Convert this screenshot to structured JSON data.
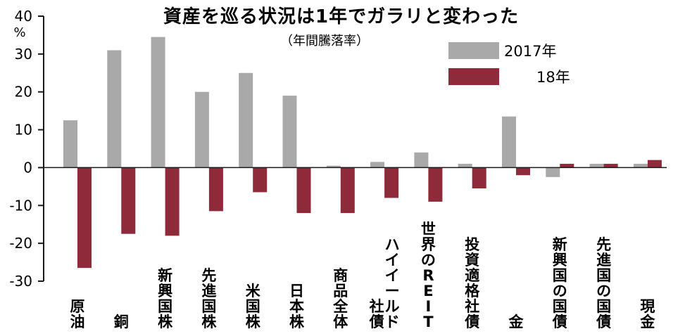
{
  "chart_data": {
    "type": "bar",
    "title": "資産を巡る状況は1年でガラリと変わった",
    "subtitle": "（年間騰落率）",
    "y_unit": "%",
    "ylim": [
      -30,
      40
    ],
    "yticks": [
      40,
      30,
      20,
      10,
      0,
      -10,
      -20,
      -30
    ],
    "categories": [
      "原油",
      "銅",
      "新興国株",
      "先進国株",
      "米国株",
      "日本株",
      "商品全体",
      "ハイイールド社債",
      "世界のREIT",
      "投資適格社債",
      "金",
      "新興国の国債",
      "先進国の国債",
      "現金"
    ],
    "category_lines": [
      [
        "原油"
      ],
      [
        "銅"
      ],
      [
        "新興国株"
      ],
      [
        "先進国株"
      ],
      [
        "米国株"
      ],
      [
        "日本株"
      ],
      [
        "商品全体"
      ],
      [
        "ハイイールド",
        "社債"
      ],
      [
        "世界のREIT"
      ],
      [
        "投資適格社債"
      ],
      [
        "金"
      ],
      [
        "新興国の国債"
      ],
      [
        "先進国の国債"
      ],
      [
        "現金"
      ]
    ],
    "series": [
      {
        "name": "2017年",
        "color": "#a9a9a9",
        "values": [
          12.5,
          31,
          34.5,
          20,
          25,
          19,
          0.5,
          1.5,
          4,
          1,
          13.5,
          -2.5,
          1,
          1
        ]
      },
      {
        "name": "18年",
        "color": "#8e2a3a",
        "values": [
          -26.5,
          -17.5,
          -18,
          -11.5,
          -6.5,
          -12,
          -12,
          -8,
          -9,
          -5.5,
          -2,
          1,
          1,
          2
        ]
      }
    ],
    "legend_position": "top-right",
    "grid": false
  }
}
